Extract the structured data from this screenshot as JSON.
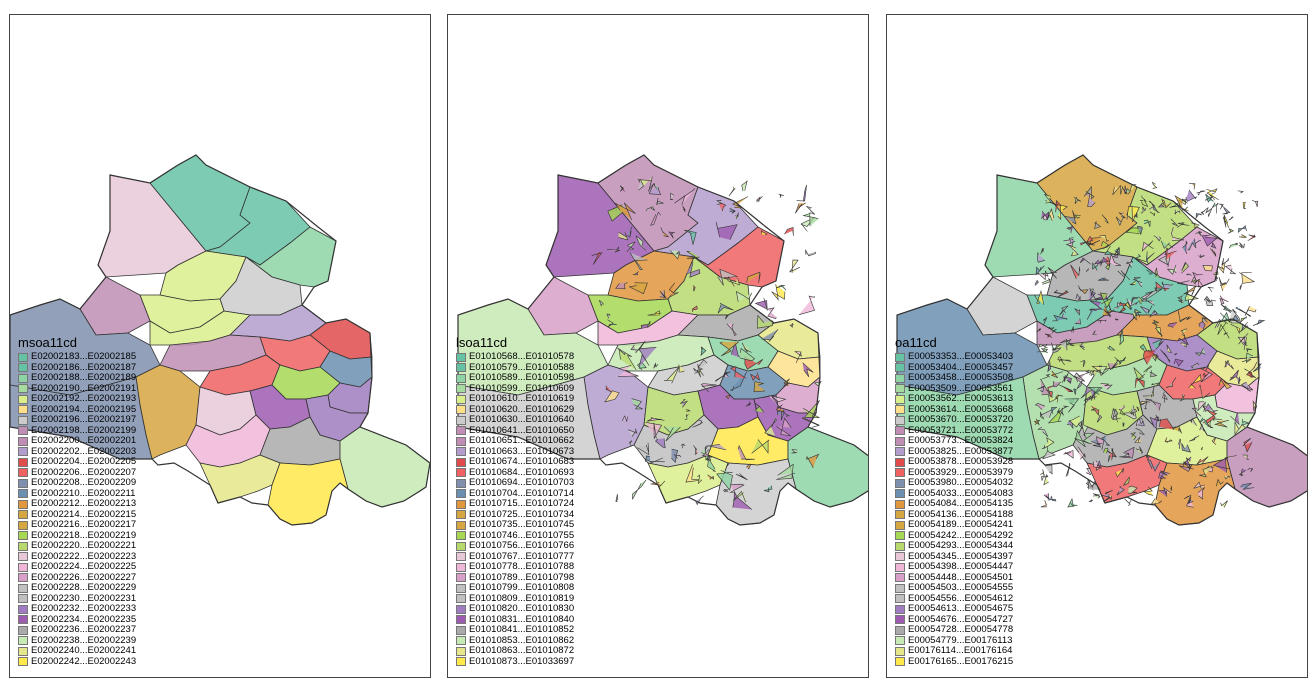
{
  "palette": [
    "#66c2a5",
    "#8dd3a4",
    "#a6dba0",
    "#d9ef8b",
    "#fee08b",
    "#cccccc",
    "#c08eb5",
    "#b39dcc",
    "#e04b4b",
    "#f06262",
    "#7f8fae",
    "#6b8fb0",
    "#e0973e",
    "#d6a640",
    "#a6d854",
    "#b8d96e",
    "#e8c8d8",
    "#f0b6d8",
    "#d8a0c8",
    "#c0c0c0",
    "#a07cc0",
    "#9d5cb0",
    "#aaaaaa",
    "#c7e9b4",
    "#e6e68a",
    "#ffe84a"
  ],
  "panels": [
    {
      "name": "msoa",
      "legend": {
        "title": "msoa11cd",
        "items": [
          "E02002183...E02002185",
          "E02002186...E02002187",
          "E02002188...E02002189",
          "E02002190...E02002191",
          "E02002192...E02002193",
          "E02002194...E02002195",
          "E02002196...E02002197",
          "E02002198...E02002199",
          "E02002200...E02002201",
          "E02002202...E02002203",
          "E02002204...E02002205",
          "E02002206...E02002207",
          "E02002208...E02002209",
          "E02002210...E02002211",
          "E02002212...E02002213",
          "E02002214...E02002215",
          "E02002216...E02002217",
          "E02002218...E02002219",
          "E02002220...E02002221",
          "E02002222...E02002223",
          "E02002224...E02002225",
          "E02002226...E02002227",
          "E02002228...E02002229",
          "E02002230...E02002231",
          "E02002232...E02002233",
          "E02002234...E02002235",
          "E02002236...E02002237",
          "E02002238...E02002239",
          "E02002240...E02002241",
          "E02002242...E02002243"
        ]
      }
    },
    {
      "name": "lsoa",
      "legend": {
        "title": "lsoa11cd",
        "items": [
          "E01010568...E01010578",
          "E01010579...E01010588",
          "E01010589...E01010598",
          "E01010599...E01010609",
          "E01010610...E01010619",
          "E01010620...E01010629",
          "E01010630...E01010640",
          "E01010641...E01010650",
          "E01010651...E01010662",
          "E01010663...E01010673",
          "E01010674...E01010683",
          "E01010684...E01010693",
          "E01010694...E01010703",
          "E01010704...E01010714",
          "E01010715...E01010724",
          "E01010725...E01010734",
          "E01010735...E01010745",
          "E01010746...E01010755",
          "E01010756...E01010766",
          "E01010767...E01010777",
          "E01010778...E01010788",
          "E01010789...E01010798",
          "E01010799...E01010808",
          "E01010809...E01010819",
          "E01010820...E01010830",
          "E01010831...E01010840",
          "E01010841...E01010852",
          "E01010853...E01010862",
          "E01010863...E01010872",
          "E01010873...E01033697"
        ]
      }
    },
    {
      "name": "oa",
      "legend": {
        "title": "oa11cd",
        "items": [
          "E00053353...E00053403",
          "E00053404...E00053457",
          "E00053458...E00053508",
          "E00053509...E00053561",
          "E00053562...E00053613",
          "E00053614...E00053668",
          "E00053670...E00053720",
          "E00053721...E00053772",
          "E00053773...E00053824",
          "E00053825...E00053877",
          "E00053878...E00053928",
          "E00053929...E00053979",
          "E00053980...E00054032",
          "E00054033...E00054083",
          "E00054084...E00054135",
          "E00054136...E00054188",
          "E00054189...E00054241",
          "E00054242...E00054292",
          "E00054293...E00054344",
          "E00054345...E00054397",
          "E00054398...E00054447",
          "E00054448...E00054501",
          "E00054503...E00054555",
          "E00054556...E00054612",
          "E00054613...E00054675",
          "E00054676...E00054727",
          "E00054728...E00054778",
          "E00054779...E00176113",
          "E00176114...E00176164",
          "E00176165...E00176215"
        ]
      }
    }
  ]
}
